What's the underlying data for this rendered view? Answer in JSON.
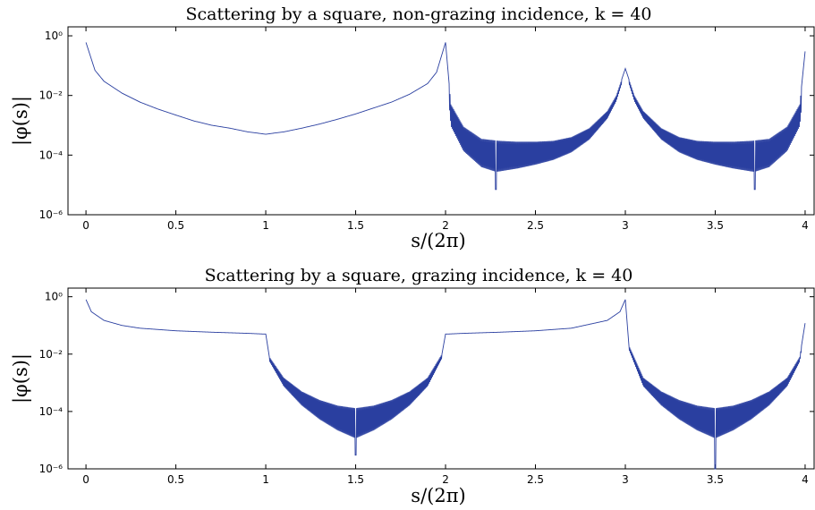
{
  "chart_data": [
    {
      "type": "line",
      "title": "Scattering by a square, non-grazing incidence, k = 40",
      "xlabel": "s/(2π)",
      "ylabel": "|φ(s)|",
      "xlim": [
        -0.1,
        4.05
      ],
      "ylim": [
        1e-06,
        2
      ],
      "yscale": "log",
      "xticks": [
        "0",
        "0.5",
        "1",
        "1.5",
        "2",
        "2.5",
        "3",
        "3.5",
        "4"
      ],
      "yticks": [
        "10⁰",
        "10⁻²",
        "10⁻⁴",
        "10⁻⁶"
      ],
      "grid": false,
      "series": [
        {
          "x": [
            0,
            0.05,
            0.1,
            0.2,
            0.3,
            0.4,
            0.5,
            0.6,
            0.7,
            0.8,
            0.9,
            0.95,
            1.0,
            1.05,
            1.1,
            1.2,
            1.3,
            1.4,
            1.5,
            1.6,
            1.7,
            1.8,
            1.9,
            1.95,
            2.0,
            2.03,
            2.1,
            2.2,
            2.3,
            2.4,
            2.5,
            2.6,
            2.7,
            2.8,
            2.9,
            2.95,
            3.0,
            3.05,
            3.1,
            3.2,
            3.3,
            3.4,
            3.5,
            3.6,
            3.7,
            3.8,
            3.9,
            3.97,
            4.0
          ],
          "y": [
            0.6,
            0.07,
            0.03,
            0.012,
            0.006,
            0.0035,
            0.0022,
            0.0014,
            0.001,
            0.0008,
            0.0006,
            0.00055,
            0.0005,
            0.00055,
            0.0006,
            0.0008,
            0.0011,
            0.0016,
            0.0024,
            0.0038,
            0.006,
            0.011,
            0.025,
            0.06,
            0.6,
            0.005,
            0.0009,
            0.00035,
            0.0003,
            0.00028,
            0.00028,
            0.0003,
            0.0004,
            0.0008,
            0.003,
            0.01,
            0.08,
            0.01,
            0.003,
            0.0008,
            0.0004,
            0.0003,
            0.00028,
            0.00028,
            0.0003,
            0.00035,
            0.0009,
            0.005,
            0.3
          ],
          "oscillation_ranges": [
            [
              2.02,
              2.98,
              2.28
            ],
            [
              3.02,
              3.98,
              3.72
            ]
          ],
          "dips": [
            [
              2.28,
              7e-06
            ],
            [
              3.72,
              7e-06
            ]
          ]
        }
      ]
    },
    {
      "type": "line",
      "title": "Scattering by a square, grazing incidence, k = 40",
      "xlabel": "s/(2π)",
      "ylabel": "|φ(s)|",
      "xlim": [
        -0.1,
        4.05
      ],
      "ylim": [
        1e-06,
        2
      ],
      "yscale": "log",
      "xticks": [
        "0",
        "0.5",
        "1",
        "1.5",
        "2",
        "2.5",
        "3",
        "3.5",
        "4"
      ],
      "yticks": [
        "10⁰",
        "10⁻²",
        "10⁻⁴",
        "10⁻⁶"
      ],
      "grid": false,
      "series": [
        {
          "x": [
            0,
            0.03,
            0.1,
            0.2,
            0.3,
            0.5,
            0.7,
            0.9,
            0.99,
            1.0,
            1.02,
            1.1,
            1.2,
            1.3,
            1.4,
            1.5,
            1.6,
            1.7,
            1.8,
            1.9,
            1.98,
            2.0,
            2.01,
            2.1,
            2.3,
            2.5,
            2.7,
            2.9,
            2.97,
            3.0,
            3.02,
            3.1,
            3.2,
            3.3,
            3.4,
            3.5,
            3.6,
            3.7,
            3.8,
            3.9,
            3.97,
            4.0
          ],
          "y": [
            0.8,
            0.3,
            0.15,
            0.1,
            0.08,
            0.065,
            0.058,
            0.053,
            0.05,
            0.05,
            0.008,
            0.0015,
            0.0005,
            0.00025,
            0.00016,
            0.00013,
            0.00016,
            0.00025,
            0.0005,
            0.0015,
            0.01,
            0.05,
            0.05,
            0.053,
            0.058,
            0.065,
            0.08,
            0.15,
            0.3,
            0.8,
            0.02,
            0.0015,
            0.0005,
            0.00025,
            0.00016,
            0.00013,
            0.00016,
            0.00025,
            0.0005,
            0.0015,
            0.008,
            0.12
          ],
          "oscillation_ranges": [
            [
              1.02,
              1.98,
              1.5
            ],
            [
              3.02,
              3.98,
              3.5
            ]
          ],
          "dips": [
            [
              1.5,
              3e-06
            ],
            [
              3.5,
              1e-06
            ]
          ]
        }
      ]
    }
  ]
}
